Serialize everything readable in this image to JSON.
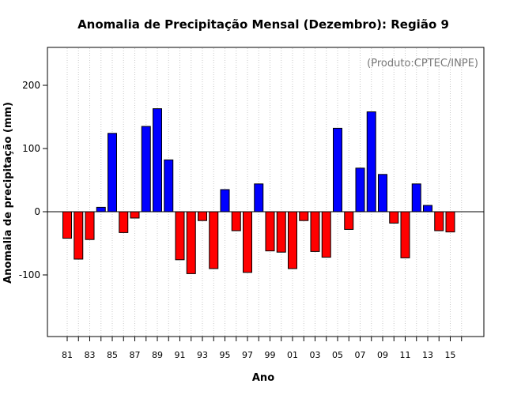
{
  "chart_data": {
    "type": "bar",
    "title": "Anomalia de Precipitação Mensal (Dezembro): Região 9",
    "note": "(Produto:CPTEC/INPE)",
    "xlabel": "Ano",
    "ylabel": "Anomalia de precipitação (mm)",
    "ylim": [
      -200,
      250
    ],
    "yticks": [
      -100,
      0,
      100,
      200
    ],
    "x_tick_labels": [
      "81",
      "83",
      "85",
      "87",
      "89",
      "91",
      "93",
      "95",
      "97",
      "99",
      "01",
      "03",
      "05",
      "07",
      "09",
      "11",
      "13",
      "15"
    ],
    "grid": true,
    "colors": {
      "positive": "#0000ff",
      "negative": "#ff0000",
      "zero_line": "#000000",
      "grid": "#c8c8c8"
    },
    "categories": [
      "81",
      "82",
      "83",
      "84",
      "85",
      "86",
      "87",
      "88",
      "89",
      "90",
      "91",
      "92",
      "93",
      "94",
      "95",
      "96",
      "97",
      "98",
      "99",
      "00",
      "01",
      "02",
      "03",
      "04",
      "05",
      "06",
      "07",
      "08",
      "09",
      "10",
      "11",
      "12",
      "13",
      "14",
      "15",
      "16"
    ],
    "values": [
      -42,
      -75,
      -44,
      7,
      124,
      -33,
      -10,
      135,
      163,
      82,
      -76,
      -98,
      -14,
      -90,
      35,
      -30,
      -96,
      44,
      -62,
      -64,
      -90,
      -14,
      -63,
      -72,
      132,
      -28,
      69,
      158,
      59,
      -18,
      -73,
      44,
      10,
      -30,
      -32,
      0
    ]
  }
}
